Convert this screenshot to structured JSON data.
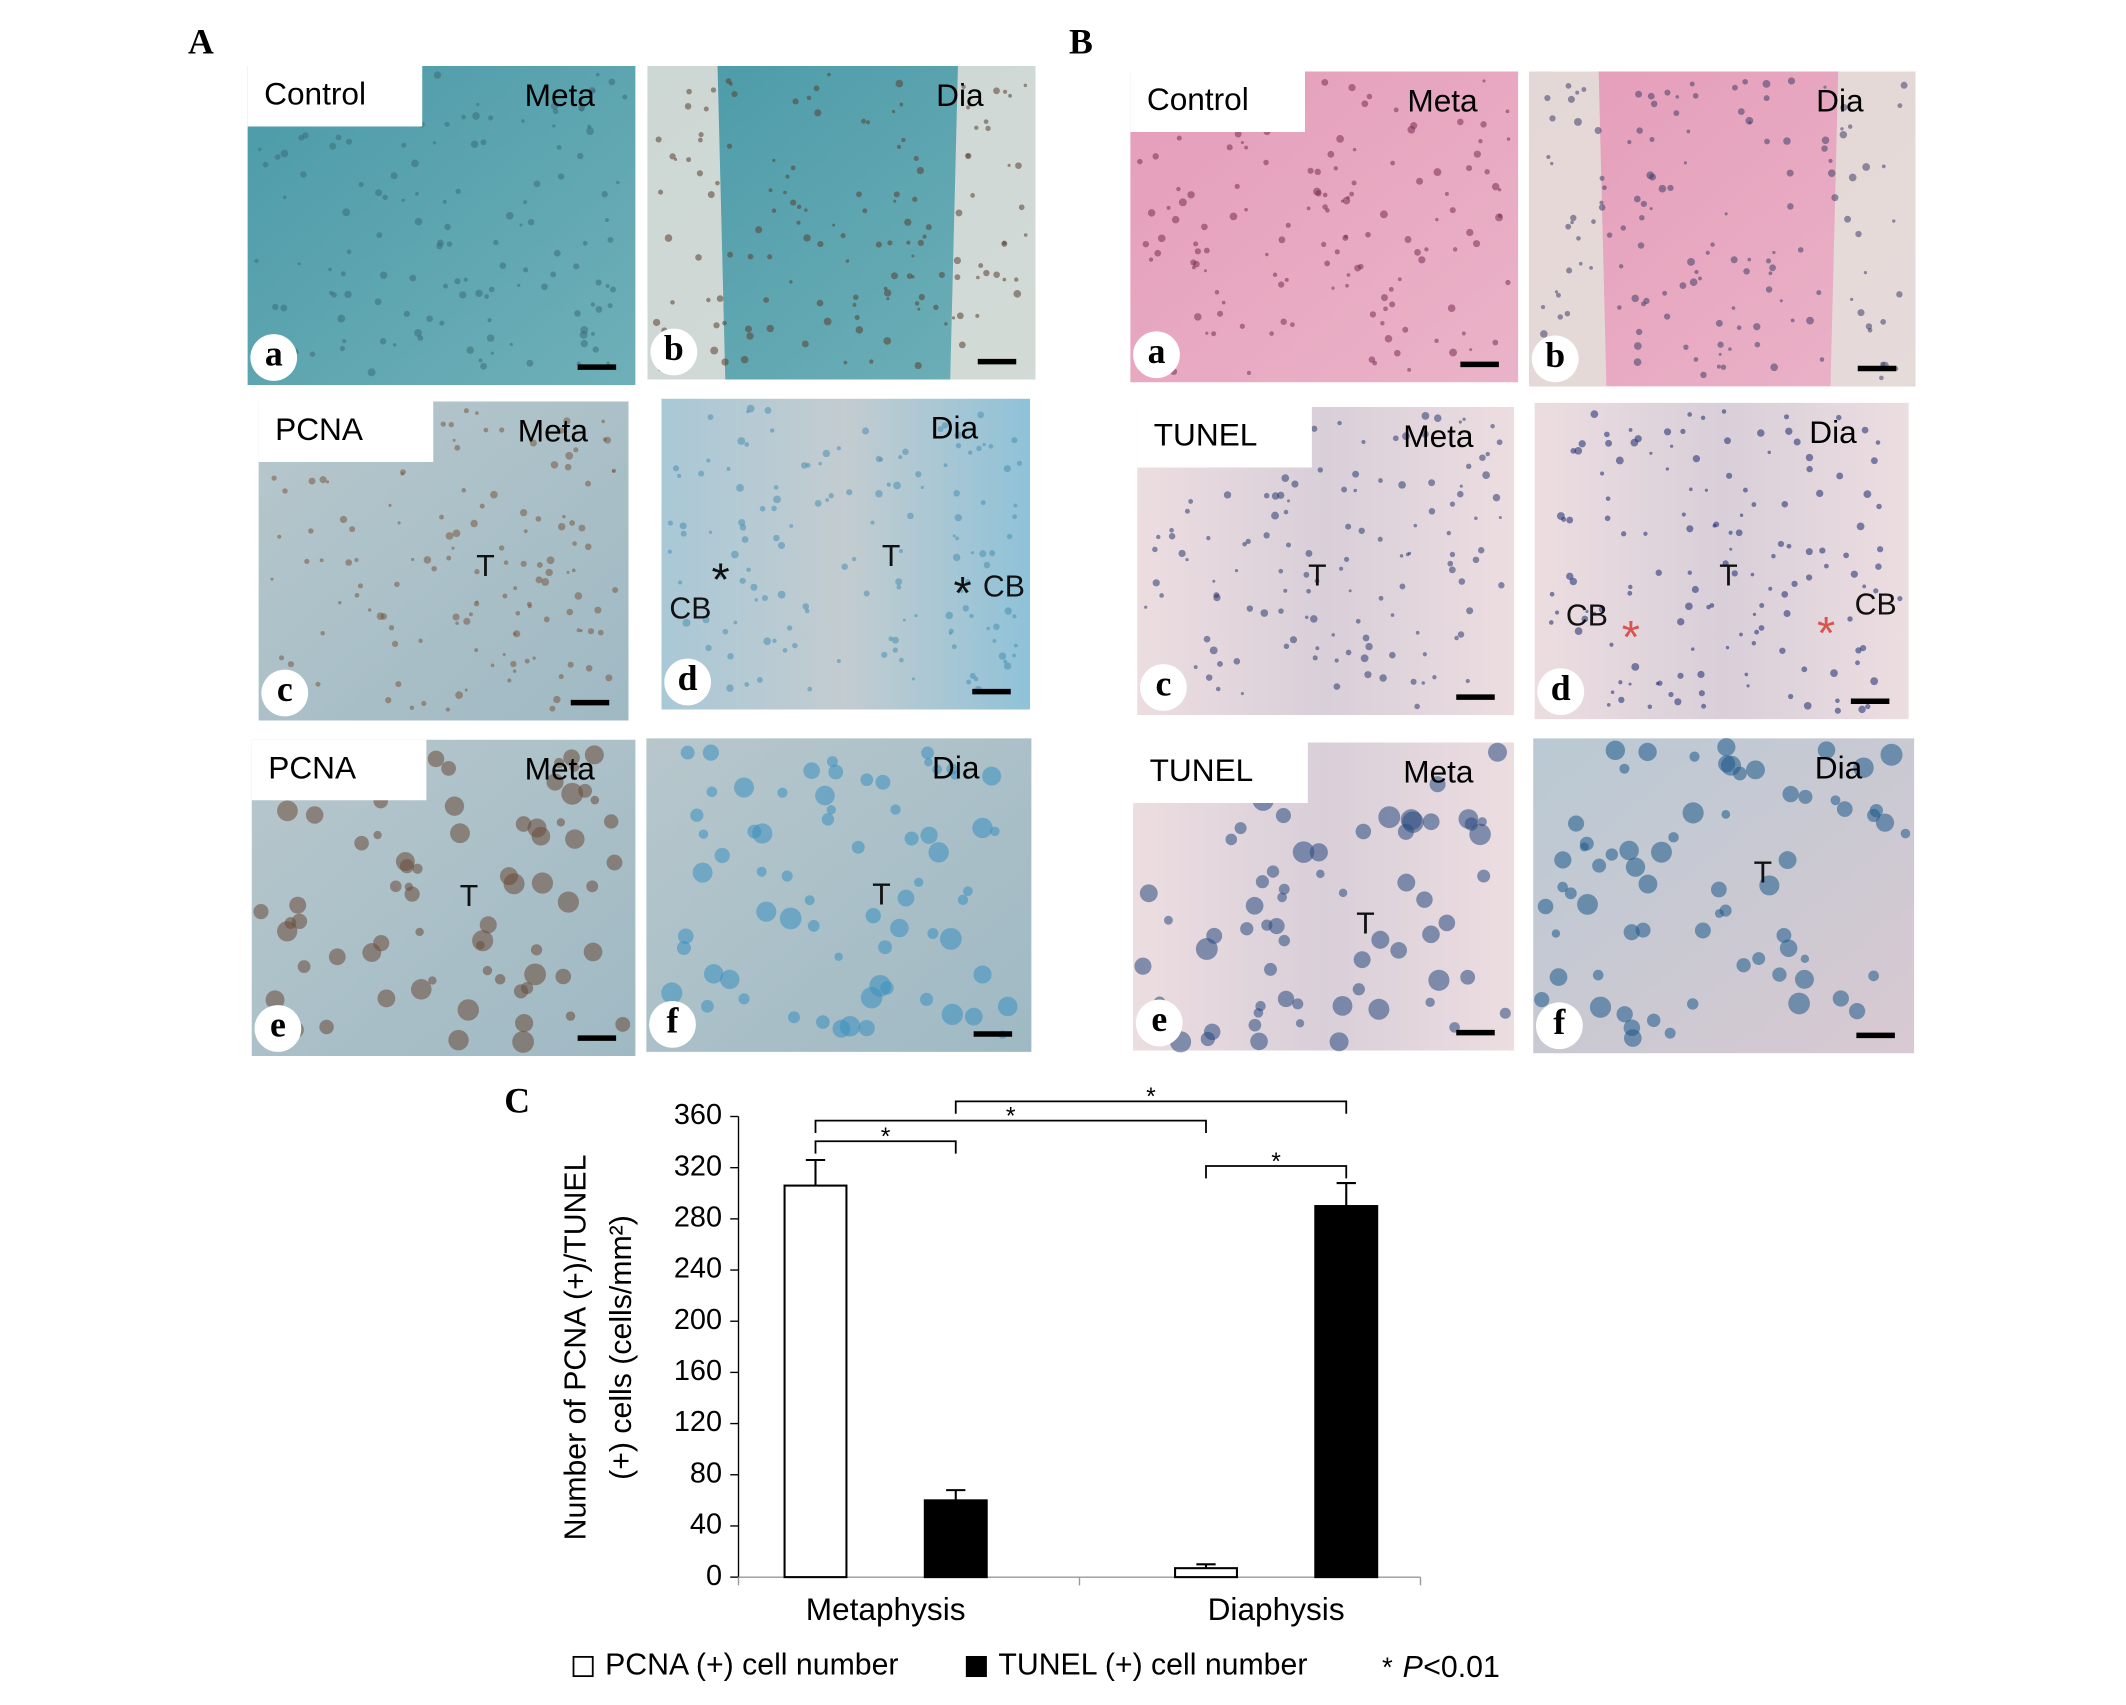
{
  "figure": {
    "panels": [
      {
        "label": "A",
        "images": [
          {
            "letter": "a",
            "tag": "Control",
            "region": "Meta"
          },
          {
            "letter": "b",
            "region": "Dia"
          },
          {
            "letter": "c",
            "tag": "PCNA",
            "region": "Meta",
            "annotations": [
              "T"
            ]
          },
          {
            "letter": "d",
            "region": "Dia",
            "annotations": [
              "T",
              "*",
              "CB",
              "*",
              "CB"
            ]
          },
          {
            "letter": "e",
            "tag": "PCNA",
            "region": "Meta",
            "annotations": [
              "T"
            ]
          },
          {
            "letter": "f",
            "region": "Dia",
            "annotations": [
              "T"
            ]
          }
        ]
      },
      {
        "label": "B",
        "images": [
          {
            "letter": "a",
            "tag": "Control",
            "region": "Meta"
          },
          {
            "letter": "b",
            "region": "Dia"
          },
          {
            "letter": "c",
            "tag": "TUNEL",
            "region": "Meta",
            "annotations": [
              "T"
            ]
          },
          {
            "letter": "d",
            "region": "Dia",
            "annotations": [
              "T",
              "CB",
              "*",
              "*",
              "CB"
            ]
          },
          {
            "letter": "e",
            "tag": "TUNEL",
            "region": "Meta",
            "annotations": [
              "T"
            ]
          },
          {
            "letter": "f",
            "region": "Dia",
            "annotations": [
              "T"
            ]
          }
        ]
      }
    ]
  },
  "chart_data": {
    "type": "bar",
    "label": "C",
    "y_label": [
      "Number of PCNA (+)/TUNEL",
      "(+) cells (cells/mm²)"
    ],
    "categories": [
      "Metaphysis",
      "Diaphysis"
    ],
    "series": [
      {
        "name": "PCNA (+) cell number",
        "color": "#ffffff",
        "values": [
          306,
          7
        ],
        "errors": [
          20,
          3
        ]
      },
      {
        "name": "TUNEL (+) cell number",
        "color": "#000000",
        "values": [
          60,
          290
        ],
        "errors": [
          8,
          18
        ]
      }
    ],
    "ylim": [
      0,
      360
    ],
    "yticks": [
      0,
      40,
      80,
      120,
      160,
      200,
      240,
      280,
      320,
      360
    ],
    "significance_marks": [
      "*",
      "*",
      "*",
      "*"
    ],
    "significance_note": {
      "symbol": "*",
      "variable": "P",
      "threshold": "<0.01"
    }
  }
}
